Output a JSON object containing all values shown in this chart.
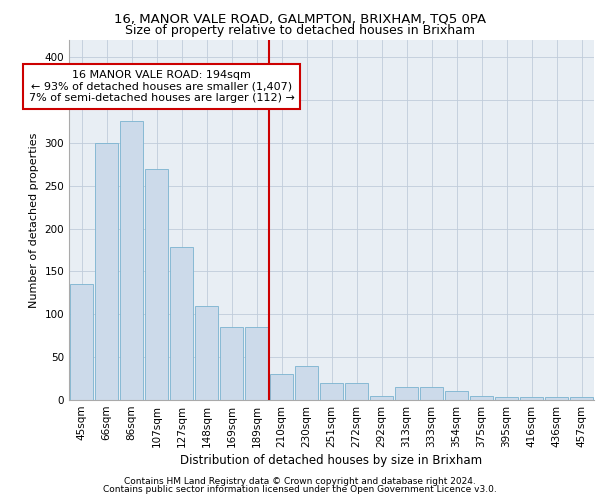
{
  "title1": "16, MANOR VALE ROAD, GALMPTON, BRIXHAM, TQ5 0PA",
  "title2": "Size of property relative to detached houses in Brixham",
  "xlabel": "Distribution of detached houses by size in Brixham",
  "ylabel": "Number of detached properties",
  "categories": [
    "45sqm",
    "66sqm",
    "86sqm",
    "107sqm",
    "127sqm",
    "148sqm",
    "169sqm",
    "189sqm",
    "210sqm",
    "230sqm",
    "251sqm",
    "272sqm",
    "292sqm",
    "313sqm",
    "333sqm",
    "354sqm",
    "375sqm",
    "395sqm",
    "416sqm",
    "436sqm",
    "457sqm"
  ],
  "values": [
    135,
    300,
    325,
    270,
    178,
    110,
    85,
    85,
    30,
    40,
    20,
    20,
    5,
    15,
    15,
    10,
    5,
    3,
    3,
    3,
    3
  ],
  "bar_color": "#ccdaea",
  "bar_edge_color": "#7ab3d0",
  "vline_color": "#cc0000",
  "annotation_text": "16 MANOR VALE ROAD: 194sqm\n← 93% of detached houses are smaller (1,407)\n7% of semi-detached houses are larger (112) →",
  "annotation_box_color": "#ffffff",
  "annotation_box_edge": "#cc0000",
  "footer1": "Contains HM Land Registry data © Crown copyright and database right 2024.",
  "footer2": "Contains public sector information licensed under the Open Government Licence v3.0.",
  "ylim": [
    0,
    420
  ],
  "yticks": [
    0,
    50,
    100,
    150,
    200,
    250,
    300,
    350,
    400
  ],
  "grid_color": "#c0ccda",
  "bg_color": "#e8eef4",
  "title1_fontsize": 9.5,
  "title2_fontsize": 9,
  "xlabel_fontsize": 8.5,
  "ylabel_fontsize": 8,
  "tick_fontsize": 7.5,
  "annotation_fontsize": 8,
  "footer_fontsize": 6.5
}
